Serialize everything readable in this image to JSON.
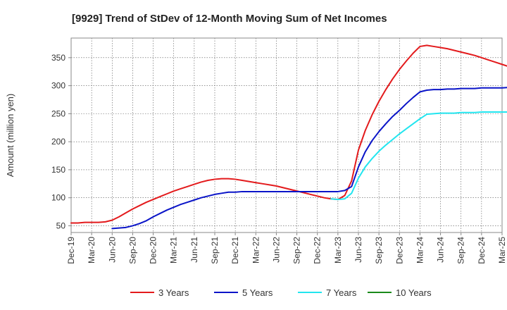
{
  "chart_data": {
    "type": "line",
    "title": "[9929]  Trend of StDev of 12-Month Moving Sum of Net Incomes",
    "ylabel": "Amount (million yen)",
    "xlabel": "",
    "ylim": [
      38,
      385
    ],
    "yticks": [
      50,
      100,
      150,
      200,
      250,
      300,
      350
    ],
    "x_ticks": [
      "Dec-19",
      "Mar-20",
      "Jun-20",
      "Sep-20",
      "Dec-20",
      "Mar-21",
      "Jun-21",
      "Sep-21",
      "Dec-21",
      "Mar-22",
      "Jun-22",
      "Sep-22",
      "Dec-22",
      "Mar-23",
      "Jun-23",
      "Sep-23",
      "Dec-23",
      "Mar-24",
      "Jun-24",
      "Sep-24",
      "Dec-24",
      "Mar-25"
    ],
    "grid": true,
    "legend_position": "bottom",
    "series": [
      {
        "name": "3 Years",
        "color": "#e31a1c",
        "values": [
          55,
          55,
          56,
          56,
          56,
          57,
          60,
          66,
          73,
          80,
          86,
          92,
          97,
          102,
          107,
          112,
          116,
          120,
          124,
          128,
          131,
          133,
          134,
          134,
          133,
          131,
          129,
          127,
          125,
          123,
          121,
          118,
          115,
          112,
          109,
          106,
          103,
          100,
          98,
          97,
          104,
          130,
          185,
          220,
          248,
          272,
          293,
          312,
          329,
          344,
          358,
          370,
          372,
          370,
          368,
          366,
          363,
          360,
          357,
          354,
          350,
          346,
          342,
          338,
          334,
          330,
          327,
          326,
          325,
          325,
          324,
          323,
          323,
          322,
          322
        ]
      },
      {
        "name": "5 Years",
        "color": "#0a14c8",
        "values": [
          null,
          null,
          null,
          null,
          null,
          null,
          45,
          46,
          47,
          50,
          54,
          59,
          66,
          72,
          78,
          83,
          88,
          92,
          96,
          100,
          103,
          106,
          108,
          110,
          110,
          111,
          111,
          111,
          111,
          111,
          111,
          111,
          111,
          111,
          111,
          111,
          111,
          111,
          111,
          111,
          113,
          120,
          155,
          182,
          202,
          218,
          232,
          245,
          256,
          268,
          279,
          289,
          292,
          293,
          293,
          294,
          294,
          295,
          295,
          295,
          296,
          296,
          296,
          296,
          297,
          297,
          297,
          298,
          298,
          298,
          299,
          299,
          299,
          300,
          300
        ]
      },
      {
        "name": "7 Years",
        "color": "#22e5ef",
        "values": [
          null,
          null,
          null,
          null,
          null,
          null,
          null,
          null,
          null,
          null,
          null,
          null,
          null,
          null,
          null,
          null,
          null,
          null,
          null,
          null,
          null,
          null,
          null,
          null,
          null,
          null,
          null,
          null,
          null,
          null,
          null,
          null,
          null,
          null,
          null,
          null,
          null,
          null,
          98,
          97,
          98,
          108,
          135,
          155,
          170,
          183,
          194,
          204,
          214,
          223,
          232,
          241,
          249,
          250,
          251,
          251,
          251,
          252,
          252,
          252,
          253,
          253,
          253,
          253,
          253,
          253,
          254,
          254,
          254,
          254,
          254,
          254,
          255,
          255,
          255
        ]
      },
      {
        "name": "10 Years",
        "color": "#1a8a1a",
        "values": []
      }
    ]
  }
}
